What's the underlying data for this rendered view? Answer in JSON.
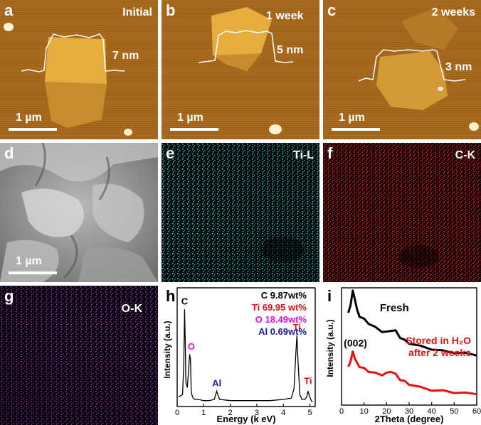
{
  "panels": {
    "a": {
      "label": "a",
      "tag": "Initial",
      "height_label": "7 nm",
      "scale_label": "1 µm"
    },
    "b": {
      "label": "b",
      "tag": "1 week",
      "height_label": "5 nm",
      "scale_label": "1 µm"
    },
    "c": {
      "label": "c",
      "tag": "2 weeks",
      "height_label": "3 nm",
      "scale_label": "1 µm"
    },
    "d": {
      "label": "d",
      "scale_label": "1 µm"
    },
    "e": {
      "label": "e",
      "tag": "Ti-L"
    },
    "f": {
      "label": "f",
      "tag": "C-K"
    },
    "g": {
      "label": "g",
      "tag": "O-K"
    },
    "h": {
      "label": "h"
    },
    "i": {
      "label": "i"
    }
  },
  "colors": {
    "afm_bg": "#a56a1e",
    "afm_flake": "#e0a238",
    "ti_map": "#35c8cc",
    "c_map": "#e51e1e",
    "o_map": "#9a36b8",
    "black": "#000000",
    "red": "#e81010",
    "magenta": "#e010e0",
    "blue": "#1a1aa8"
  },
  "chart_data": [
    {
      "type": "line",
      "panel": "h",
      "xlabel": "Energy (k eV)",
      "ylabel": "Intensity (a.u.)",
      "xlim": [
        0,
        5.2
      ],
      "ylim": [
        0,
        1
      ],
      "xticks": [
        0,
        1,
        2,
        3,
        4,
        5
      ],
      "series": [
        {
          "x": [
            0.05,
            0.2,
            0.25,
            0.28,
            0.3,
            0.33,
            0.38,
            0.43,
            0.47,
            0.5,
            0.53,
            0.58,
            0.65,
            0.8,
            1.0,
            1.2,
            1.4,
            1.45,
            1.49,
            1.53,
            1.6,
            2.0,
            2.5,
            3.0,
            3.5,
            4.0,
            4.3,
            4.4,
            4.47,
            4.51,
            4.55,
            4.62,
            4.7,
            4.8,
            4.88,
            4.93,
            4.98,
            5.05,
            5.1
          ],
          "y": [
            0.08,
            0.1,
            0.35,
            0.82,
            0.6,
            0.2,
            0.16,
            0.3,
            0.44,
            0.4,
            0.12,
            0.08,
            0.06,
            0.06,
            0.05,
            0.05,
            0.06,
            0.1,
            0.13,
            0.1,
            0.06,
            0.05,
            0.05,
            0.05,
            0.05,
            0.06,
            0.07,
            0.15,
            0.45,
            0.6,
            0.4,
            0.1,
            0.06,
            0.06,
            0.08,
            0.13,
            0.09,
            0.05,
            0.04
          ]
        }
      ],
      "annotations": [
        {
          "text": "C",
          "x": 0.28,
          "y": 0.86,
          "color": "#000000"
        },
        {
          "text": "O",
          "x": 0.53,
          "y": 0.48,
          "color": "#e010e0"
        },
        {
          "text": "Al",
          "x": 1.49,
          "y": 0.17,
          "color": "#1a1aa8"
        },
        {
          "text": "Ti",
          "x": 4.51,
          "y": 0.64,
          "color": "#e81010"
        },
        {
          "text": "Ti",
          "x": 4.93,
          "y": 0.19,
          "color": "#e81010"
        }
      ],
      "composition": [
        {
          "text": "C 9.87wt%",
          "color": "#000000"
        },
        {
          "text": "Ti 69.95 wt%",
          "color": "#e81010"
        },
        {
          "text": "O 18.49wt%",
          "color": "#e010e0"
        },
        {
          "text": "Al 0.69wt%",
          "color": "#1a1aa8"
        }
      ]
    },
    {
      "type": "line",
      "panel": "i",
      "xlabel": "2Theta (degree)",
      "ylabel": "Intensity (a.u.)",
      "xlim": [
        0,
        60
      ],
      "ylim": [
        0,
        1
      ],
      "xticks": [
        0,
        10,
        20,
        30,
        40,
        50,
        60
      ],
      "peak_label": "(002)",
      "series": [
        {
          "name": "Fresh",
          "color": "#000000",
          "x": [
            3,
            4,
            5,
            6,
            7,
            8,
            10,
            12,
            15,
            18,
            20,
            22,
            24,
            26,
            28,
            30,
            35,
            40,
            45,
            50,
            55,
            60
          ],
          "y": [
            0.78,
            0.86,
            0.97,
            0.9,
            0.8,
            0.76,
            0.73,
            0.7,
            0.66,
            0.63,
            0.62,
            0.64,
            0.63,
            0.58,
            0.55,
            0.53,
            0.5,
            0.48,
            0.46,
            0.45,
            0.44,
            0.43
          ]
        },
        {
          "name": "Stored in H₂O after 2 weeks",
          "color": "#e81010",
          "x": [
            3,
            4,
            5,
            6,
            7,
            8,
            10,
            12,
            15,
            18,
            20,
            22,
            24,
            26,
            28,
            30,
            35,
            40,
            45,
            50,
            55,
            60
          ],
          "y": [
            0.32,
            0.38,
            0.45,
            0.4,
            0.35,
            0.33,
            0.31,
            0.29,
            0.27,
            0.26,
            0.27,
            0.29,
            0.26,
            0.22,
            0.2,
            0.18,
            0.15,
            0.13,
            0.12,
            0.11,
            0.1,
            0.1
          ]
        }
      ]
    }
  ]
}
